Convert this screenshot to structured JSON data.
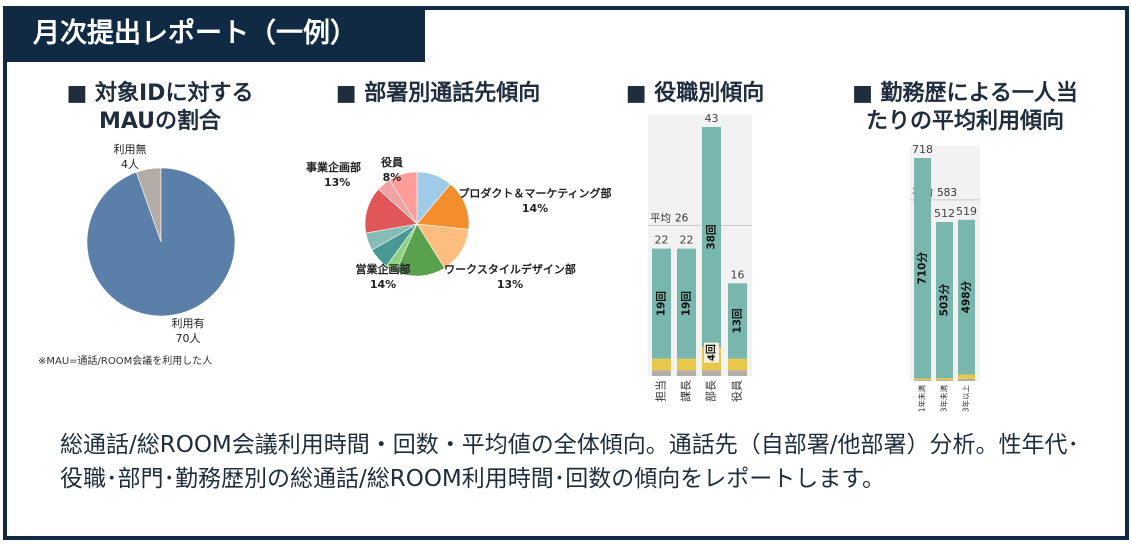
{
  "header": {
    "title": "月次提出レポート（一例）"
  },
  "sections": {
    "mau": {
      "title_l1": "■ 対象IDに対する",
      "title_l2": "MAUの割合"
    },
    "dept": {
      "title": "■ 部署別通話先傾向"
    },
    "role": {
      "title": "■ 役職別傾向"
    },
    "tenure": {
      "title_l1": "■ 勤務歴による一人当",
      "title_l2": "たりの平均利用傾向"
    }
  },
  "footnote": "※MAU=通話/ROOM会議を利用した人",
  "description": "総通話/総ROOM会議利用時間・回数・平均値の全体傾向。通話先（自部署/他部署）分析。性年代･役職･部門･勤務歴別の総通話/総ROOM利用時間･回数の傾向をレポートします。",
  "colors": {
    "navy": "#102a43",
    "teal": "#78b6ae",
    "yellow": "#e8c84a",
    "gray": "#b4aca6",
    "mau_blue": "#5a7fa8"
  },
  "chart_data": [
    {
      "type": "pie",
      "slices": [
        {
          "label": "利用有",
          "value_label": "70人",
          "value": 70,
          "color": "#5a7fa8"
        },
        {
          "label": "利用無",
          "value_label": "4人",
          "value": 4,
          "color": "#b4aca6"
        }
      ]
    },
    {
      "type": "pie",
      "slices": [
        {
          "label": "プロダクト＆マーケティング部",
          "pct": "14%",
          "value": 14,
          "color": "#f28e2b"
        },
        {
          "label": "ワークスタイルデザイン部",
          "pct": "13%",
          "value": 13,
          "color": "#ffbe7d"
        },
        {
          "label": "営業企画部",
          "pct": "14%",
          "value": 14,
          "color": "#59a14f"
        },
        {
          "label": "事業企画部",
          "pct": "13%",
          "value": 13,
          "color": "#e15759"
        },
        {
          "label": "役員",
          "pct": "8%",
          "value": 8,
          "color": "#ff9d9a"
        }
      ],
      "other_values": [
        10,
        3,
        6,
        5,
        10,
        4
      ],
      "other_colors": [
        "#a0cbe8",
        "#8cd17d",
        "#499894",
        "#86bcb6",
        "#e15759",
        "#f1a3a2"
      ]
    },
    {
      "type": "bar",
      "categories": [
        "担当",
        "課長",
        "部長",
        "役員"
      ],
      "totals": [
        22,
        22,
        43,
        16
      ],
      "teal_values": [
        19,
        19,
        38,
        13
      ],
      "yellow_values": [
        2,
        2,
        4,
        2
      ],
      "gray_values": [
        1,
        1,
        1,
        1
      ],
      "labels": [
        "19回",
        "19回",
        "38回",
        "13回"
      ],
      "extra_label": {
        "bar": 2,
        "text": "4回"
      },
      "average": {
        "label": "平均",
        "value": 26
      },
      "ylim": [
        0,
        43
      ]
    },
    {
      "type": "bar",
      "categories": [
        "1年未満",
        "3年未満",
        "3年以上"
      ],
      "totals": [
        718,
        512,
        519
      ],
      "teal_values": [
        710,
        503,
        498
      ],
      "yellow_values": [
        5,
        6,
        14
      ],
      "gray_values": [
        3,
        3,
        7
      ],
      "labels": [
        "710分",
        "503分",
        "498分"
      ],
      "average": {
        "label": "平均",
        "value": 583
      },
      "ylim": [
        0,
        718
      ]
    }
  ]
}
